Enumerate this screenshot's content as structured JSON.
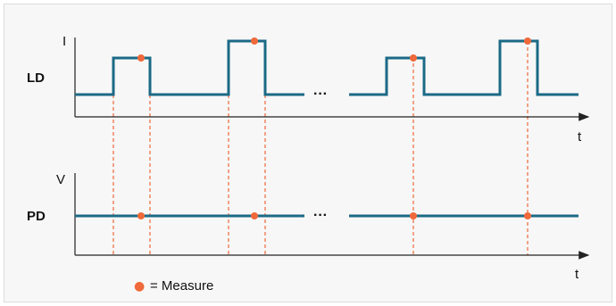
{
  "diagram": {
    "top_panel": {
      "label": "LD",
      "axis_y_label": "I",
      "axis_x_label": "t"
    },
    "bottom_panel": {
      "label": "PD",
      "axis_y_label": "V",
      "axis_x_label": "t"
    },
    "gap_ellipsis": "···",
    "legend": {
      "marker": "●",
      "text": "= Measure"
    },
    "colors": {
      "trace": "#1b6a86",
      "measure": "#f0693a",
      "axis": "#222222",
      "frame_bg": "#f7f7f7",
      "frame_border": "#dcdcdc"
    }
  }
}
